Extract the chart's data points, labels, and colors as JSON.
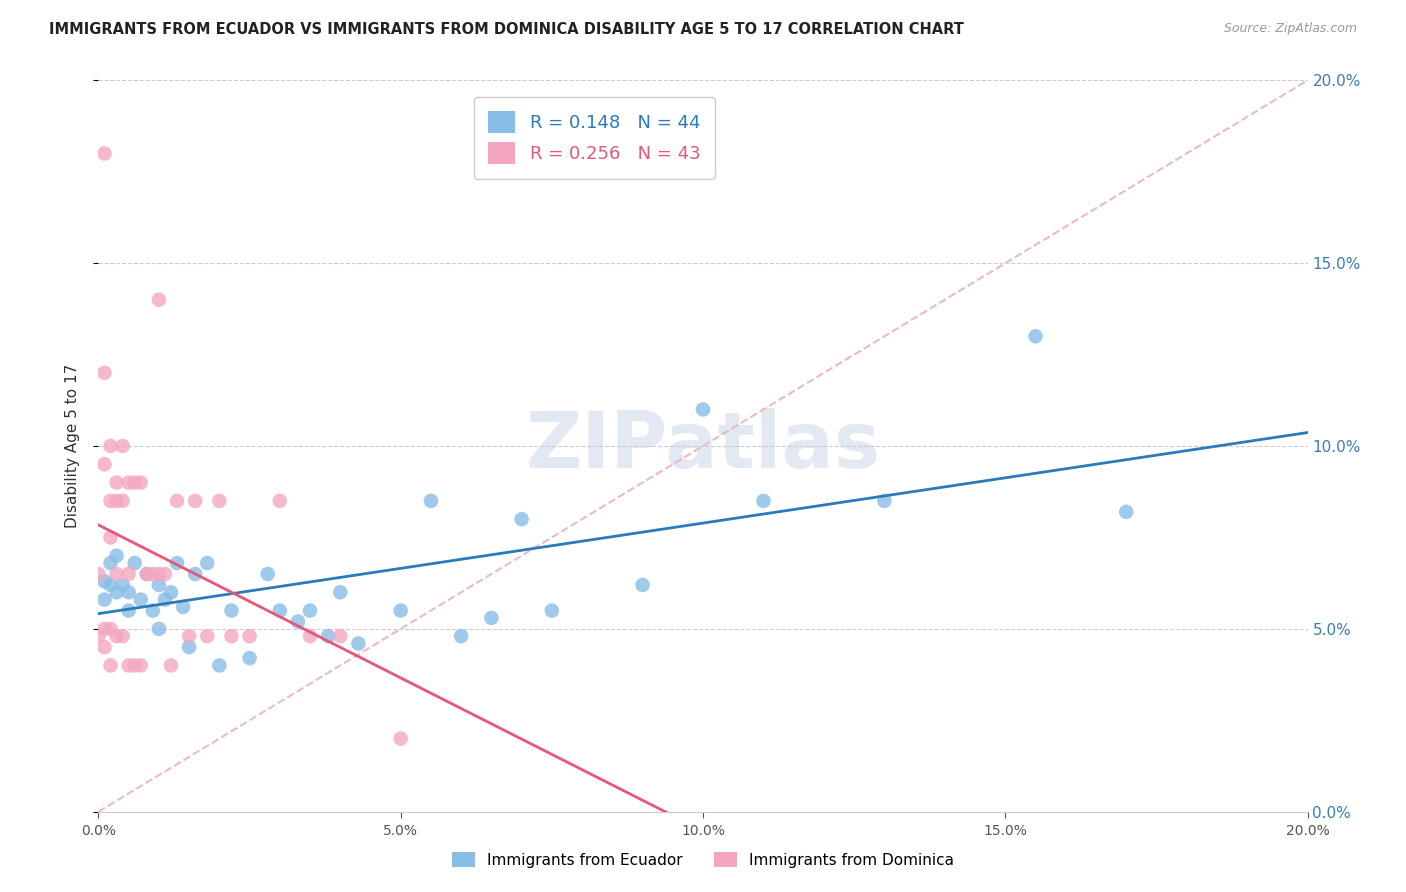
{
  "title": "IMMIGRANTS FROM ECUADOR VS IMMIGRANTS FROM DOMINICA DISABILITY AGE 5 TO 17 CORRELATION CHART",
  "source": "Source: ZipAtlas.com",
  "ylabel": "Disability Age 5 to 17",
  "legend_ecuador": "Immigrants from Ecuador",
  "legend_dominica": "Immigrants from Dominica",
  "r_ecuador": 0.148,
  "n_ecuador": 44,
  "r_dominica": 0.256,
  "n_dominica": 43,
  "color_ecuador": "#88bde6",
  "color_dominica": "#f4a6c0",
  "line_color_ecuador": "#2b7bba",
  "line_color_dominica": "#e8567a",
  "diagonal_color": "#e8b4b8",
  "xlim": [
    0.0,
    0.2
  ],
  "ylim": [
    0.0,
    0.2
  ],
  "ecuador_x": [
    0.001,
    0.001,
    0.002,
    0.002,
    0.003,
    0.003,
    0.004,
    0.005,
    0.005,
    0.006,
    0.007,
    0.008,
    0.009,
    0.01,
    0.01,
    0.011,
    0.012,
    0.013,
    0.014,
    0.015,
    0.016,
    0.018,
    0.02,
    0.022,
    0.025,
    0.028,
    0.03,
    0.033,
    0.035,
    0.038,
    0.04,
    0.043,
    0.05,
    0.055,
    0.06,
    0.065,
    0.07,
    0.075,
    0.09,
    0.1,
    0.11,
    0.13,
    0.155,
    0.17
  ],
  "ecuador_y": [
    0.063,
    0.058,
    0.068,
    0.062,
    0.06,
    0.07,
    0.062,
    0.055,
    0.06,
    0.068,
    0.058,
    0.065,
    0.055,
    0.062,
    0.05,
    0.058,
    0.06,
    0.068,
    0.056,
    0.045,
    0.065,
    0.068,
    0.04,
    0.055,
    0.042,
    0.065,
    0.055,
    0.052,
    0.055,
    0.048,
    0.06,
    0.046,
    0.055,
    0.085,
    0.048,
    0.053,
    0.08,
    0.055,
    0.062,
    0.11,
    0.085,
    0.085,
    0.13,
    0.082
  ],
  "dominica_x": [
    0.0,
    0.0,
    0.001,
    0.001,
    0.001,
    0.001,
    0.001,
    0.002,
    0.002,
    0.002,
    0.002,
    0.002,
    0.003,
    0.003,
    0.003,
    0.003,
    0.004,
    0.004,
    0.004,
    0.005,
    0.005,
    0.005,
    0.006,
    0.006,
    0.007,
    0.007,
    0.008,
    0.009,
    0.01,
    0.01,
    0.011,
    0.012,
    0.013,
    0.015,
    0.016,
    0.018,
    0.02,
    0.022,
    0.025,
    0.03,
    0.035,
    0.04,
    0.05
  ],
  "dominica_y": [
    0.065,
    0.048,
    0.18,
    0.12,
    0.095,
    0.05,
    0.045,
    0.1,
    0.085,
    0.075,
    0.05,
    0.04,
    0.09,
    0.085,
    0.065,
    0.048,
    0.1,
    0.085,
    0.048,
    0.09,
    0.065,
    0.04,
    0.09,
    0.04,
    0.09,
    0.04,
    0.065,
    0.065,
    0.14,
    0.065,
    0.065,
    0.04,
    0.085,
    0.048,
    0.085,
    0.048,
    0.085,
    0.048,
    0.048,
    0.085,
    0.048,
    0.048,
    0.02
  ]
}
